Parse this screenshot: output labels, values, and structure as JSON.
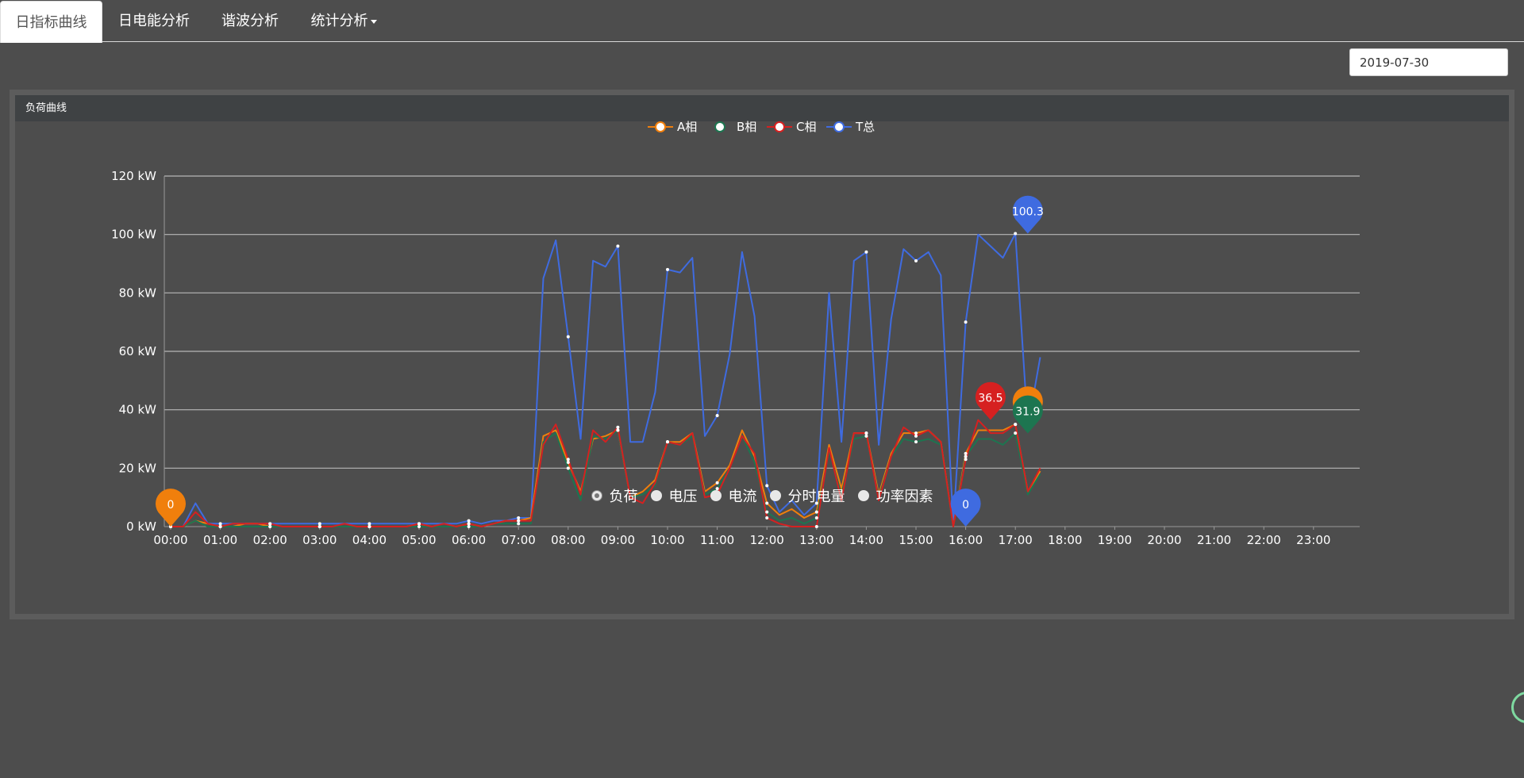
{
  "tabs": [
    {
      "label": "日指标曲线",
      "active": true
    },
    {
      "label": "日电能分析",
      "active": false
    },
    {
      "label": "谐波分析",
      "active": false
    },
    {
      "label": "统计分析",
      "active": false,
      "dropdown": true
    }
  ],
  "date_value": "2019-07-30",
  "panel_title": "负荷曲线",
  "radio_options": [
    {
      "label": "负荷",
      "checked": true
    },
    {
      "label": "电压",
      "checked": false
    },
    {
      "label": "电流",
      "checked": false
    },
    {
      "label": "分时电量",
      "checked": false
    },
    {
      "label": "功率因素",
      "checked": false
    }
  ],
  "chart_data": {
    "type": "line",
    "title": "",
    "unit": "kW",
    "ylim": [
      0,
      120
    ],
    "y_ticks": [
      "0 kW",
      "20 kW",
      "40 kW",
      "60 kW",
      "80 kW",
      "100 kW",
      "120 kW"
    ],
    "x_ticks": [
      "00:00",
      "01:00",
      "02:00",
      "03:00",
      "04:00",
      "05:00",
      "06:00",
      "07:00",
      "08:00",
      "09:00",
      "10:00",
      "11:00",
      "12:00",
      "13:00",
      "14:00",
      "15:00",
      "16:00",
      "17:00",
      "18:00",
      "19:00",
      "20:00",
      "21:00",
      "22:00",
      "23:00"
    ],
    "x_interval_minutes": 15,
    "legend_position": "top-center",
    "grid": true,
    "series": [
      {
        "name": "A相",
        "color": "#f07f0c",
        "values": [
          0,
          0,
          2,
          1,
          0,
          0,
          1,
          1,
          0,
          0,
          0,
          0,
          0,
          0,
          0,
          0,
          0,
          0,
          0,
          0,
          1,
          0,
          0,
          0,
          1,
          0,
          1,
          2,
          2,
          3,
          31,
          33,
          22,
          12,
          30,
          31,
          33,
          10,
          12,
          16,
          29,
          29,
          32,
          12,
          15,
          21,
          33,
          24,
          8,
          4,
          6,
          3,
          5,
          28,
          13,
          32,
          32,
          11,
          25,
          32,
          32,
          33,
          29,
          0,
          25,
          33,
          33,
          33,
          35,
          12,
          19
        ]
      },
      {
        "name": "B相",
        "color": "#1d7550",
        "values": [
          0,
          0,
          2,
          0,
          0,
          0,
          0,
          0,
          0,
          0,
          0,
          0,
          0,
          0,
          0,
          0,
          0,
          0,
          0,
          0,
          0,
          0,
          0,
          0,
          0,
          0,
          1,
          1,
          1,
          1,
          29,
          32,
          20,
          9,
          31,
          30,
          33,
          10,
          11,
          14,
          29,
          28,
          31,
          11,
          13,
          20,
          31,
          22,
          5,
          2,
          3,
          1,
          3,
          26,
          11,
          30,
          31,
          10,
          24,
          30,
          29,
          30,
          28,
          0,
          24,
          30,
          30,
          28,
          32,
          11,
          18
        ]
      },
      {
        "name": "C相",
        "color": "#d62020",
        "values": [
          0,
          0,
          5,
          1,
          0,
          1,
          1,
          1,
          1,
          0,
          0,
          0,
          0,
          0,
          1,
          0,
          0,
          0,
          0,
          0,
          1,
          0,
          1,
          0,
          1,
          0,
          1,
          2,
          2,
          2,
          28,
          35,
          23,
          11,
          33,
          29,
          34,
          10,
          8,
          15,
          29,
          28,
          32,
          10,
          11,
          20,
          31,
          25,
          3,
          1,
          0,
          0,
          0,
          27,
          9,
          32,
          32,
          9,
          24,
          34,
          31,
          33,
          29,
          0,
          23,
          36.5,
          32,
          32,
          35,
          12,
          20
        ]
      },
      {
        "name": "T总",
        "color": "#3f6be0",
        "values": [
          0,
          0,
          8,
          1,
          1,
          1,
          1,
          1,
          1,
          1,
          1,
          1,
          1,
          1,
          1,
          1,
          1,
          1,
          1,
          1,
          1,
          1,
          1,
          1,
          2,
          1,
          2,
          2,
          3,
          3,
          85,
          98,
          65,
          30,
          91,
          89,
          96,
          29,
          29,
          46,
          88,
          87,
          92,
          31,
          38,
          59,
          94,
          72,
          14,
          5,
          9,
          4,
          8,
          80,
          29,
          91,
          94,
          28,
          71,
          95,
          91,
          94,
          86,
          0,
          70,
          100,
          96,
          92,
          100.3,
          34,
          58
        ]
      }
    ],
    "markers": [
      {
        "series": "A相",
        "label": "0",
        "x": "00:00",
        "value": 0
      },
      {
        "series": "T总",
        "label": "0",
        "x": "16:00",
        "value": 0
      },
      {
        "series": "C相",
        "label": "36.5",
        "x": "16:30",
        "value": 36.5
      },
      {
        "series": "A相",
        "label": "",
        "x": "17:15",
        "value": 35
      },
      {
        "series": "B相",
        "label": "31.9",
        "x": "17:15",
        "value": 31.9
      },
      {
        "series": "T总",
        "label": "100.3",
        "x": "17:15",
        "value": 100.3
      }
    ]
  }
}
